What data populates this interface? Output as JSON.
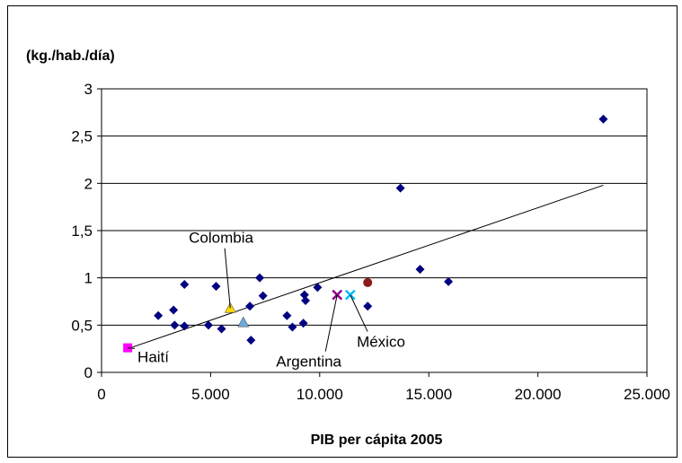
{
  "chart_data": {
    "type": "scatter",
    "ylabel": "(kg./hab./día)",
    "xlabel": "PIB per cápita 2005",
    "xlim": [
      0,
      25000
    ],
    "ylim": [
      0,
      3
    ],
    "x_ticks": [
      {
        "value": 0,
        "label": "0"
      },
      {
        "value": 5000,
        "label": "5.000"
      },
      {
        "value": 10000,
        "label": "10.000"
      },
      {
        "value": 15000,
        "label": "15.000"
      },
      {
        "value": 20000,
        "label": "20.000"
      },
      {
        "value": 25000,
        "label": "25.000"
      }
    ],
    "y_ticks": [
      {
        "value": 0,
        "label": "0"
      },
      {
        "value": 0.5,
        "label": "0,5"
      },
      {
        "value": 1,
        "label": "1"
      },
      {
        "value": 1.5,
        "label": "1,5"
      },
      {
        "value": 2,
        "label": "2"
      },
      {
        "value": 2.5,
        "label": "2,5"
      },
      {
        "value": 3,
        "label": "3"
      }
    ],
    "grid": "horizontal",
    "points": [
      {
        "x": 2600,
        "y": 0.6
      },
      {
        "x": 3300,
        "y": 0.66
      },
      {
        "x": 3350,
        "y": 0.5
      },
      {
        "x": 3800,
        "y": 0.93
      },
      {
        "x": 3800,
        "y": 0.49
      },
      {
        "x": 4900,
        "y": 0.5
      },
      {
        "x": 5250,
        "y": 0.91
      },
      {
        "x": 5500,
        "y": 0.46
      },
      {
        "x": 6800,
        "y": 0.7
      },
      {
        "x": 6850,
        "y": 0.34
      },
      {
        "x": 7250,
        "y": 1.0
      },
      {
        "x": 7400,
        "y": 0.81
      },
      {
        "x": 8500,
        "y": 0.6
      },
      {
        "x": 8750,
        "y": 0.48
      },
      {
        "x": 9250,
        "y": 0.52
      },
      {
        "x": 9300,
        "y": 0.82
      },
      {
        "x": 9350,
        "y": 0.76
      },
      {
        "x": 9900,
        "y": 0.9
      },
      {
        "x": 12200,
        "y": 0.7
      },
      {
        "x": 13700,
        "y": 1.95
      },
      {
        "x": 14600,
        "y": 1.09
      },
      {
        "x": 15900,
        "y": 0.96
      },
      {
        "x": 23000,
        "y": 2.68
      }
    ],
    "highlighted": [
      {
        "name": "Haití",
        "x": 1200,
        "y": 0.26,
        "color": "#ff00ff",
        "marker": "square",
        "label_text": "Haití",
        "label_anchor": "x:1650,y:0.11"
      },
      {
        "name": "Colombia",
        "x": 5900,
        "y": 0.68,
        "color": "#ffd700",
        "marker": "triangle",
        "label_text": "Colombia",
        "label_anchor": "x:4000,y:1.37"
      },
      {
        "name": "",
        "x": 6500,
        "y": 0.53,
        "color": "#6fa8dc",
        "marker": "triangle",
        "label_text": ""
      },
      {
        "name": "Argentina",
        "x": 10800,
        "y": 0.82,
        "color": "#8b008b",
        "marker": "x",
        "label_text": "Argentina",
        "label_anchor": "x:8000,y:0.06"
      },
      {
        "name": "México",
        "x": 11400,
        "y": 0.82,
        "color": "#00bfff",
        "marker": "x",
        "label_text": "México",
        "label_anchor": "x:11700,y:0.27"
      },
      {
        "name": "",
        "x": 12200,
        "y": 0.95,
        "color": "#8b1a1a",
        "marker": "circle",
        "label_text": ""
      }
    ],
    "trendline": {
      "x1": 1200,
      "y1": 0.25,
      "x2": 23000,
      "y2": 1.98
    },
    "colors": {
      "points": "#000080",
      "grid": "#000000",
      "trendline": "#000000"
    }
  }
}
